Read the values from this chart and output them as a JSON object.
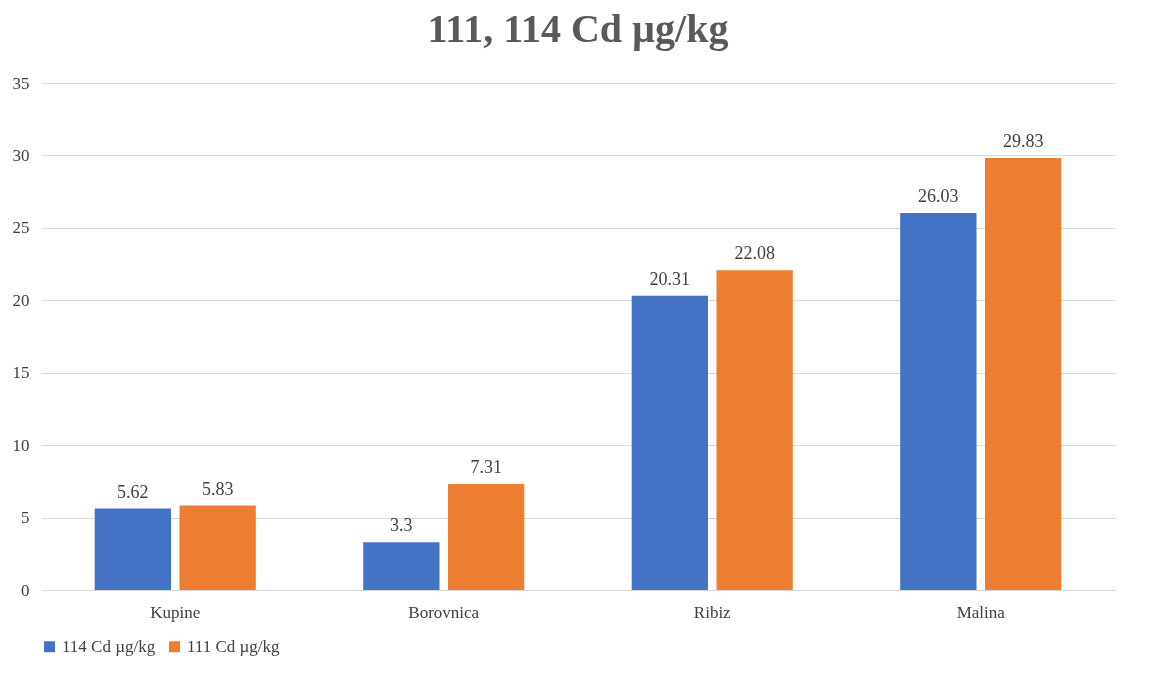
{
  "chart_data": {
    "type": "bar",
    "title": "111, 114 Cd µg/kg",
    "categories": [
      "Kupine",
      "Borovnica",
      "Ribiz",
      "Malina"
    ],
    "series": [
      {
        "name": "114 Cd µg/kg",
        "color": "#4472c4",
        "values": [
          5.62,
          3.3,
          20.31,
          26.03
        ]
      },
      {
        "name": "111 Cd µg/kg",
        "color": "#ed7d31",
        "values": [
          5.83,
          7.31,
          22.08,
          29.83
        ]
      }
    ],
    "ylim": [
      0,
      35
    ],
    "yticks": [
      0,
      5,
      10,
      15,
      20,
      25,
      30,
      35
    ],
    "grid": "y",
    "legend": "bottom",
    "data_labels": true
  }
}
